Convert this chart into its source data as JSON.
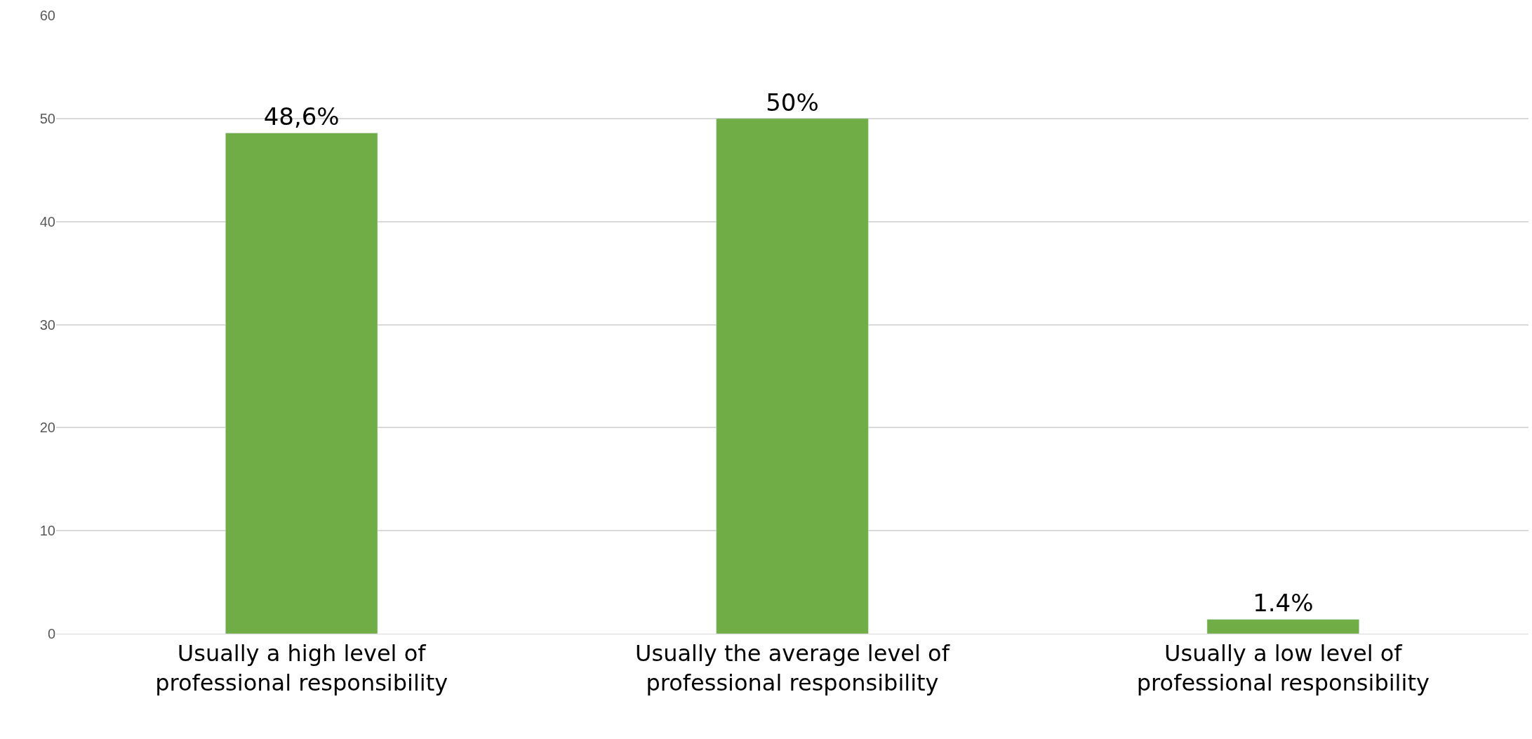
{
  "chart_data": {
    "type": "bar",
    "categories": [
      "Usually a high level of professional responsibility",
      "Usually the average level of professional responsibility",
      "Usually a low level of professional responsibility"
    ],
    "values": [
      48.6,
      50,
      1.4
    ],
    "value_labels": [
      "48,6%",
      "50%",
      "1.4%"
    ],
    "color": "#70ad47",
    "ylim": [
      0,
      60
    ],
    "yticks": [
      0,
      10,
      20,
      30,
      40,
      50,
      60
    ],
    "grid": "y"
  }
}
